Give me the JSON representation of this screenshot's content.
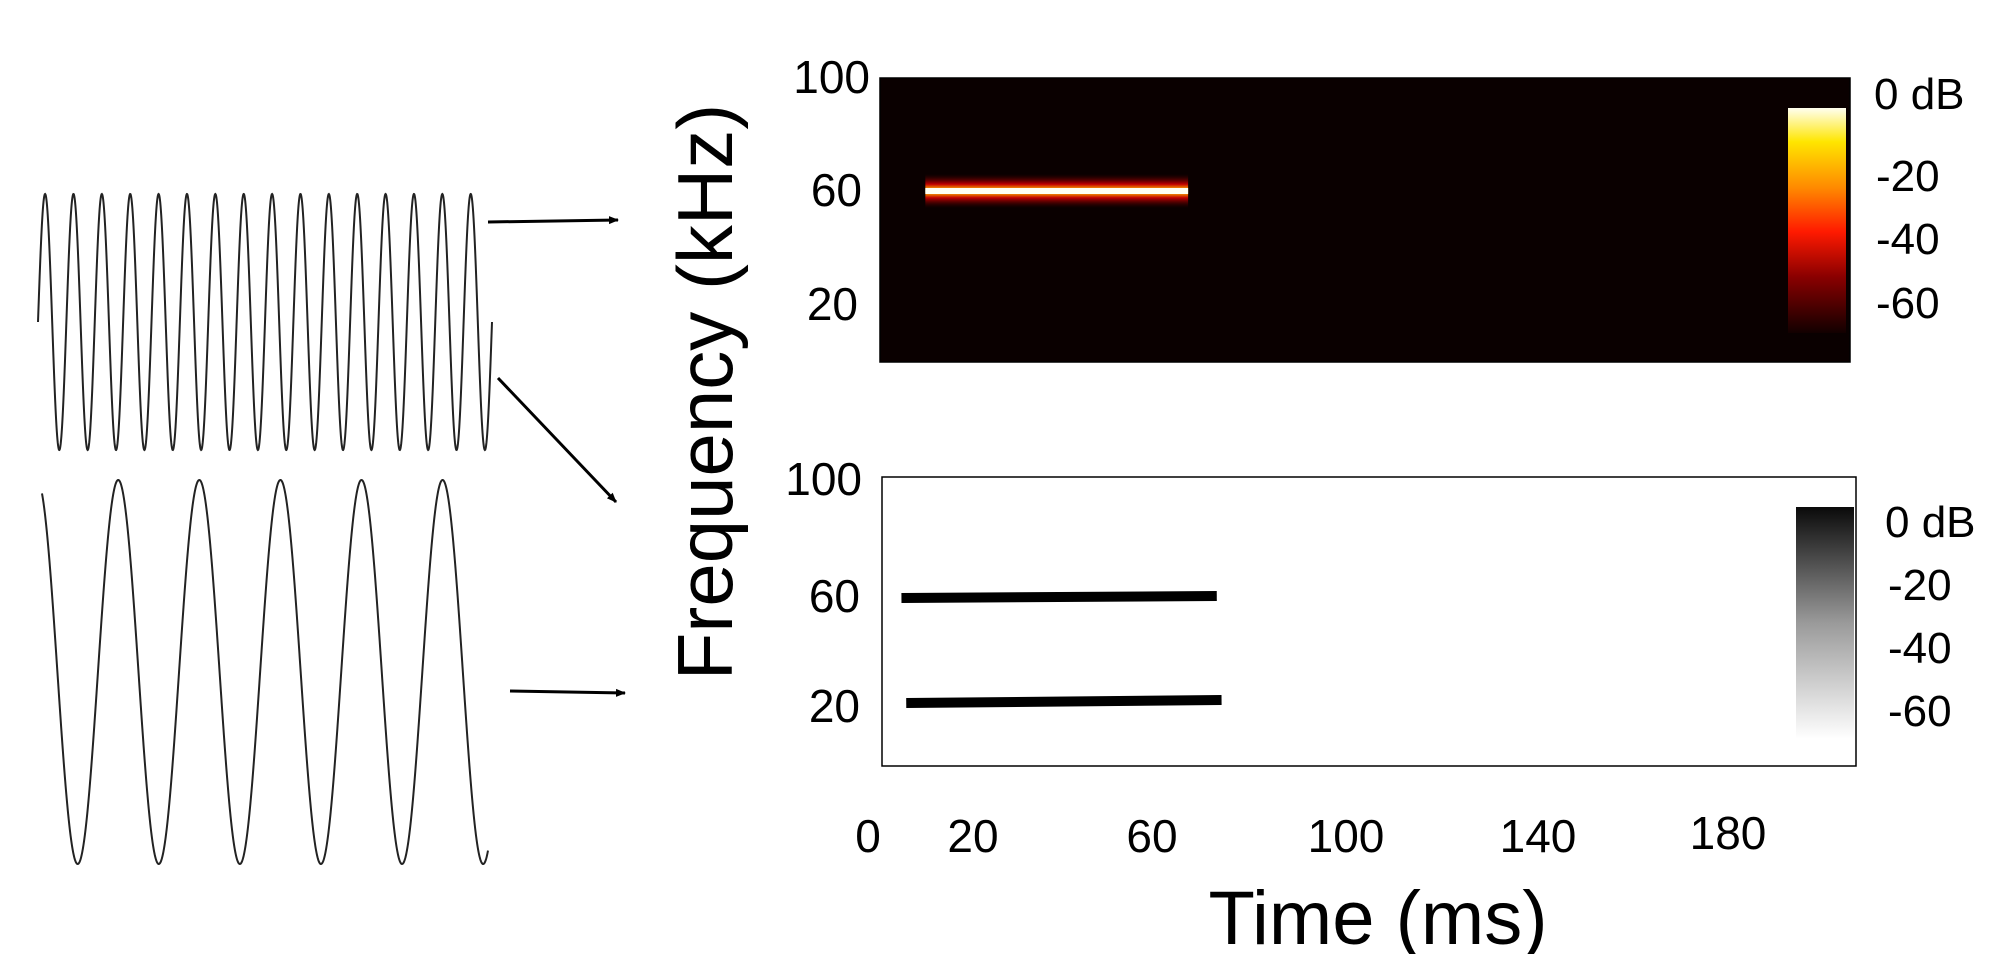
{
  "axes": {
    "ylabel": "Frequency (kHz)",
    "xlabel": "Time (ms)",
    "y_ticks": [
      "100",
      "60",
      "20"
    ],
    "x_ticks": [
      "0",
      "20",
      "60",
      "100",
      "140",
      "180"
    ]
  },
  "top_panel": {
    "colorbar_ticks": [
      "0 dB",
      "-20",
      "-40",
      "-60"
    ],
    "colormap": "hot",
    "background_color": "#0a0000",
    "tone": {
      "frequency_khz": 60,
      "start_ms": 12,
      "end_ms": 67
    }
  },
  "bottom_panel": {
    "colorbar_ticks": [
      "0 dB",
      "-20",
      "-40",
      "-60"
    ],
    "colormap": "gray",
    "tones": [
      {
        "frequency_khz": 60,
        "start_ms": 7,
        "end_ms": 73
      },
      {
        "frequency_khz": 20,
        "start_ms": 8,
        "end_ms": 74
      }
    ]
  },
  "waveforms": [
    {
      "name": "high-frequency",
      "cycles": 16
    },
    {
      "name": "low-frequency",
      "cycles": 5.5
    }
  ]
}
